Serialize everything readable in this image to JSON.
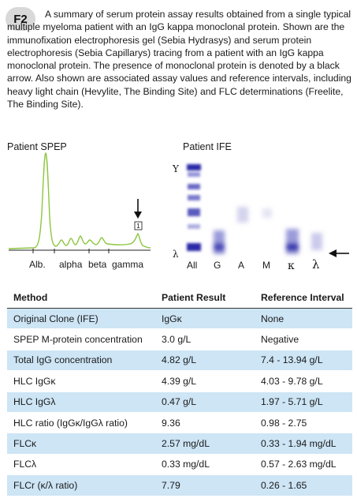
{
  "figure": {
    "label": "F2",
    "caption": "A summary of serum protein assay results obtained from a single typical multiple myeloma patient with an IgG kappa monoclonal protein. Shown are the immunofixation electrophoresis gel (Sebia Hydrasys) and serum protein electrophoresis (Sebia Capillarys) tracing from a patient with an IgG kappa monoclonal protein. The presence of monoclonal protein is denoted by a black arrow. Also shown are associated assay values and reference intervals, including heavy light chain (Hevylite, The Binding Site) and FLC determinations (Freelite, The Binding Site)."
  },
  "spep": {
    "title": "Patient SPEP",
    "marker": "1",
    "fractions": [
      "Alb.",
      "alpha",
      "beta",
      "gamma"
    ],
    "trace_color": "#8cc63f"
  },
  "ife": {
    "title": "Patient IFE",
    "row_labels": [
      "Υ",
      "λ"
    ],
    "lanes": [
      "All",
      "G",
      "A",
      "M",
      "κ",
      "λ"
    ],
    "band_color": "#3b3bb0"
  },
  "table": {
    "headers": [
      "Method",
      "Patient Result",
      "Reference Interval"
    ],
    "rows": [
      {
        "method": "Original Clone (IFE)",
        "result": "IgGκ",
        "reference": "None"
      },
      {
        "method": "SPEP M-protein concentration",
        "result": "3.0 g/L",
        "reference": "Negative"
      },
      {
        "method": "Total IgG concentration",
        "result": "4.82 g/L",
        "reference": "7.4 - 13.94 g/L"
      },
      {
        "method": "HLC IgGκ",
        "result": "4.39 g/L",
        "reference": "4.03 - 9.78 g/L"
      },
      {
        "method": "HLC IgGλ",
        "result": "0.47 g/L",
        "reference": "1.97 - 5.71 g/L"
      },
      {
        "method": "HLC ratio (IgGκ/IgGλ ratio)",
        "result": "9.36",
        "reference": "0.98 - 2.75"
      },
      {
        "method": "FLCκ",
        "result": "2.57 mg/dL",
        "reference": "0.33 - 1.94 mg/dL"
      },
      {
        "method": "FLCλ",
        "result": "0.33 mg/dL",
        "reference": "0.57 - 2.63 mg/dL"
      },
      {
        "method": "FLCr (κ/λ ratio)",
        "result": "7.79",
        "reference": "0.26 - 1.65"
      }
    ],
    "stripe_color": "#cde5f5"
  }
}
